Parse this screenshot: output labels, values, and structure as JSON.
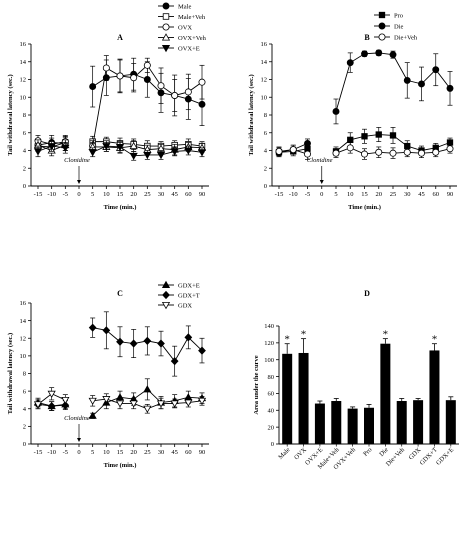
{
  "chart_data": [
    {
      "panel": "A",
      "type": "line",
      "x": [
        "-15",
        "-10",
        "-5",
        "0",
        "5",
        "10",
        "15",
        "20",
        "25",
        "30",
        "45",
        "60",
        "90"
      ],
      "xlabel": "Time (min.)",
      "ylabel": "Tail withdrawal latency (sec.)",
      "ylim": [
        0,
        16
      ],
      "yticks": [
        "0",
        "2",
        "4",
        "6",
        "8",
        "10",
        "12",
        "14",
        "16"
      ],
      "annotation": "Clonidine",
      "legend_position": "top-right",
      "series": [
        {
          "name": "Male",
          "marker": "circle-filled",
          "values": [
            4.6,
            4.9,
            4.8,
            null,
            11.2,
            12.2,
            12.4,
            12.6,
            12.0,
            10.5,
            10.2,
            9.8,
            9.2
          ],
          "err": [
            0.7,
            0.8,
            0.8,
            null,
            2.3,
            2.0,
            1.9,
            1.8,
            2.0,
            2.2,
            2.3,
            2.3,
            2.4
          ]
        },
        {
          "name": "Male+Veh",
          "marker": "square-open",
          "values": [
            4.5,
            4.4,
            4.9,
            null,
            5.0,
            5.0,
            4.8,
            4.7,
            4.5,
            4.5,
            4.6,
            4.7,
            4.5
          ],
          "err": [
            0.6,
            0.6,
            0.6,
            null,
            0.6,
            0.5,
            0.6,
            0.6,
            0.6,
            0.5,
            0.5,
            0.6,
            0.5
          ]
        },
        {
          "name": "OVX",
          "marker": "circle-open",
          "values": [
            5.1,
            4.7,
            5.0,
            null,
            4.5,
            13.3,
            12.4,
            12.2,
            13.6,
            11.3,
            10.2,
            10.6,
            11.7
          ],
          "err": [
            0.6,
            0.7,
            0.7,
            null,
            0.6,
            1.4,
            1.8,
            1.6,
            0.8,
            2.0,
            1.8,
            2.0,
            1.9
          ]
        },
        {
          "name": "OVX+Veh",
          "marker": "triangle-open",
          "values": [
            4.6,
            4.0,
            4.6,
            null,
            4.4,
            4.4,
            4.3,
            4.5,
            4.1,
            4.2,
            4.1,
            4.4,
            4.3
          ],
          "err": [
            0.6,
            0.6,
            0.6,
            null,
            0.5,
            0.5,
            0.6,
            0.6,
            0.5,
            0.5,
            0.6,
            0.5,
            0.5
          ]
        },
        {
          "name": "OVX+E",
          "marker": "triangle-down-filled",
          "values": [
            3.9,
            4.5,
            4.3,
            null,
            3.8,
            4.5,
            4.4,
            3.4,
            3.5,
            3.5,
            3.9,
            4.0,
            3.8
          ],
          "err": [
            0.6,
            0.6,
            0.6,
            null,
            0.5,
            0.6,
            0.6,
            0.5,
            0.5,
            0.5,
            0.5,
            0.5,
            0.5
          ]
        }
      ]
    },
    {
      "panel": "B",
      "type": "line",
      "x": [
        "-15",
        "-10",
        "-5",
        "0",
        "5",
        "10",
        "15",
        "20",
        "25",
        "30",
        "45",
        "60",
        "90"
      ],
      "xlabel": "Time (min.)",
      "ylabel": "Tail withdrawal latency (sec.)",
      "ylim": [
        0,
        16
      ],
      "yticks": [
        "0",
        "2",
        "4",
        "6",
        "8",
        "10",
        "12",
        "14",
        "16"
      ],
      "annotation": "Clonidine",
      "legend_position": "top-right",
      "series": [
        {
          "name": "Pro",
          "marker": "square-filled",
          "values": [
            3.8,
            3.9,
            4.2,
            null,
            3.9,
            5.2,
            5.6,
            5.8,
            5.7,
            4.5,
            4.0,
            4.3,
            4.9
          ],
          "err": [
            0.5,
            0.5,
            0.6,
            null,
            0.5,
            0.8,
            0.8,
            0.8,
            0.9,
            0.6,
            0.5,
            0.5,
            0.5
          ]
        },
        {
          "name": "Die",
          "marker": "circle-filled",
          "values": [
            3.8,
            4.1,
            4.8,
            null,
            8.4,
            13.9,
            14.9,
            15.0,
            14.8,
            11.9,
            11.5,
            13.1,
            11.0
          ],
          "err": [
            0.5,
            0.5,
            0.5,
            null,
            1.4,
            1.1,
            0.3,
            0.3,
            0.4,
            2.0,
            1.9,
            1.8,
            1.9
          ]
        },
        {
          "name": "Die+Veh",
          "marker": "circle-open",
          "values": [
            3.9,
            4.1,
            3.6,
            null,
            3.7,
            4.3,
            3.6,
            3.8,
            3.7,
            3.8,
            3.7,
            3.8,
            4.2
          ],
          "err": [
            0.5,
            0.5,
            0.6,
            null,
            0.5,
            0.6,
            0.6,
            0.6,
            0.6,
            0.5,
            0.5,
            0.5,
            0.5
          ]
        }
      ]
    },
    {
      "panel": "C",
      "type": "line",
      "x": [
        "-15",
        "-10",
        "-5",
        "0",
        "5",
        "10",
        "15",
        "20",
        "25",
        "30",
        "45",
        "60",
        "90"
      ],
      "xlabel": "Time (min.)",
      "ylabel": "Tail withdrawal latency (sec.)",
      "ylim": [
        0,
        16
      ],
      "yticks": [
        "0",
        "2",
        "4",
        "6",
        "8",
        "10",
        "12",
        "14",
        "16"
      ],
      "annotation": "Clonidine",
      "legend_position": "top-right",
      "series": [
        {
          "name": "GDX+E",
          "marker": "triangle-filled",
          "values": [
            4.7,
            4.3,
            4.5,
            null,
            3.2,
            4.7,
            5.3,
            5.1,
            6.2,
            4.7,
            4.9,
            5.3,
            5.2
          ],
          "err": [
            0.5,
            0.5,
            0.5,
            null,
            0.3,
            0.7,
            0.7,
            0.7,
            1.2,
            0.7,
            0.7,
            0.7,
            0.6
          ]
        },
        {
          "name": "GDX+T",
          "marker": "diamond-filled",
          "values": [
            4.5,
            4.3,
            4.4,
            null,
            13.2,
            12.9,
            11.6,
            11.4,
            11.7,
            11.4,
            9.4,
            12.1,
            10.6
          ],
          "err": [
            0.5,
            0.5,
            0.5,
            null,
            1.1,
            2.1,
            1.7,
            1.6,
            1.6,
            1.4,
            1.7,
            1.3,
            1.4
          ]
        },
        {
          "name": "GDX",
          "marker": "triangle-down-open",
          "values": [
            4.5,
            5.7,
            5.0,
            null,
            4.9,
            5.1,
            4.6,
            4.6,
            4.0,
            4.6,
            4.6,
            4.7,
            4.9
          ],
          "err": [
            0.5,
            0.7,
            0.6,
            null,
            0.6,
            0.6,
            0.6,
            0.6,
            0.5,
            0.6,
            0.5,
            0.5,
            0.5
          ]
        }
      ]
    },
    {
      "panel": "D",
      "type": "bar",
      "categories": [
        "Male",
        "OVX",
        "OVX+E",
        "Male+Veh",
        "OVX+Veh",
        "Pro",
        "Die",
        "Die+Veh",
        "GDX",
        "GDX+T",
        "GDX+E"
      ],
      "values": [
        107,
        108,
        48,
        51,
        42,
        43,
        119,
        51,
        52,
        111,
        52
      ],
      "err": [
        12,
        17,
        3,
        3,
        2,
        4,
        6,
        3,
        2,
        8,
        4
      ],
      "significant": [
        true,
        true,
        false,
        false,
        false,
        false,
        true,
        false,
        false,
        true,
        false
      ],
      "significance_label": "*",
      "ylabel": "Area under the curve",
      "ylim": [
        0,
        140
      ],
      "yticks": [
        "0",
        "20",
        "40",
        "60",
        "80",
        "100",
        "120",
        "140"
      ]
    }
  ]
}
